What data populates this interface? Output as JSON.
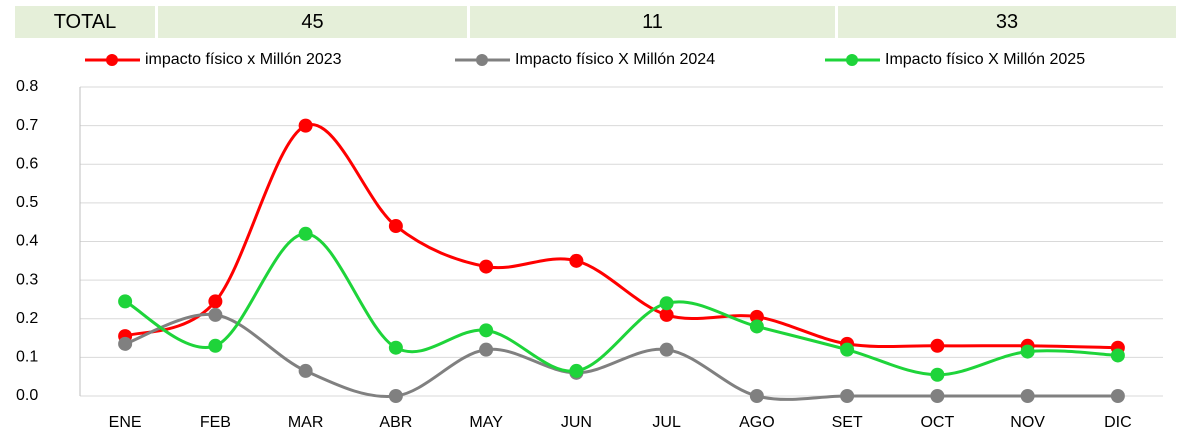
{
  "chart_data": {
    "type": "line",
    "totals": {
      "label": "TOTAL",
      "values": [
        45,
        11,
        33
      ]
    },
    "categories": [
      "ENE",
      "FEB",
      "MAR",
      "ABR",
      "MAY",
      "JUN",
      "JUL",
      "AGO",
      "SET",
      "OCT",
      "NOV",
      "DIC"
    ],
    "series": [
      {
        "name": "impacto físico x Millón 2023",
        "color": "#ff0000",
        "values": [
          0.155,
          0.245,
          0.7,
          0.44,
          0.335,
          0.35,
          0.21,
          0.205,
          0.135,
          0.13,
          0.13,
          0.125
        ]
      },
      {
        "name": "Impacto físico X Millón 2024",
        "color": "#808080",
        "values": [
          0.135,
          0.21,
          0.065,
          0,
          0.12,
          0.06,
          0.12,
          0,
          0,
          0,
          0,
          0
        ]
      },
      {
        "name": "Impacto físico X Millón 2025",
        "color": "#1ed43a",
        "values": [
          0.245,
          0.13,
          0.42,
          0.125,
          0.17,
          0.065,
          0.24,
          0.18,
          0.12,
          0.055,
          0.115,
          0.105
        ]
      }
    ],
    "ylim": [
      0,
      0.8
    ],
    "yticks": [
      {
        "value": 0,
        "label": "0.0"
      },
      0.1,
      0.2,
      0.3,
      0.4,
      0.5,
      0.6,
      0.7,
      0.8
    ],
    "grid": true,
    "smooth": true
  }
}
